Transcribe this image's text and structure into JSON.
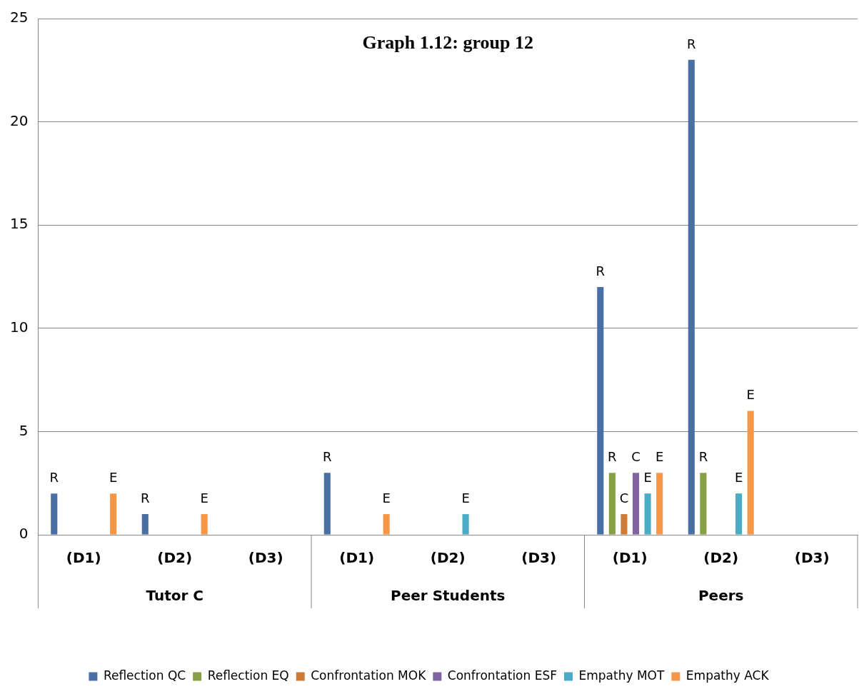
{
  "chart_data": {
    "type": "bar",
    "title": "Graph 1.12: group 12",
    "categories": [
      "(D1)",
      "(D2)",
      "(D3)",
      "(D1)",
      "(D2)",
      "(D3)",
      "(D1)",
      "(D2)",
      "(D3)"
    ],
    "annotations": [
      "Tutor C",
      "Peer Students",
      "Peers"
    ],
    "series": [
      {
        "name": "Reflection QC",
        "color": "#4a6fa5",
        "values": [
          2,
          1,
          0,
          3,
          0,
          0,
          12,
          23,
          0
        ],
        "value_labels": [
          "R",
          "R",
          null,
          "R",
          null,
          null,
          "R",
          "R",
          null
        ]
      },
      {
        "name": "Reflection EQ",
        "color": "#86a044",
        "values": [
          0,
          0,
          0,
          0,
          0,
          0,
          3,
          3,
          0
        ],
        "value_labels": [
          null,
          null,
          null,
          null,
          null,
          null,
          "R",
          "R",
          null
        ]
      },
      {
        "name": "Confrontation MOK",
        "color": "#d07a38",
        "values": [
          0,
          0,
          0,
          0,
          0,
          0,
          1,
          0,
          0
        ],
        "value_labels": [
          null,
          null,
          null,
          null,
          null,
          null,
          "C",
          null,
          null
        ]
      },
      {
        "name": "Confrontation ESF",
        "color": "#8064a2",
        "values": [
          0,
          0,
          0,
          0,
          0,
          0,
          3,
          0,
          0
        ],
        "value_labels": [
          null,
          null,
          null,
          null,
          null,
          null,
          "C",
          null,
          null
        ]
      },
      {
        "name": "Empathy MOT",
        "color": "#4bacc6",
        "values": [
          0,
          0,
          0,
          0,
          1,
          0,
          2,
          2,
          0
        ],
        "value_labels": [
          null,
          null,
          null,
          null,
          "E",
          null,
          "E",
          "E",
          null
        ]
      },
      {
        "name": "Empathy ACK",
        "color": "#f79646",
        "values": [
          2,
          1,
          0,
          1,
          0,
          0,
          3,
          6,
          0
        ],
        "value_labels": [
          "E",
          "E",
          null,
          "E",
          null,
          null,
          "E",
          "E",
          null
        ]
      }
    ],
    "ylim": [
      0,
      25
    ],
    "yticks": [
      0,
      5,
      10,
      15,
      20,
      25
    ],
    "grid": "y",
    "legend": "bottom"
  }
}
